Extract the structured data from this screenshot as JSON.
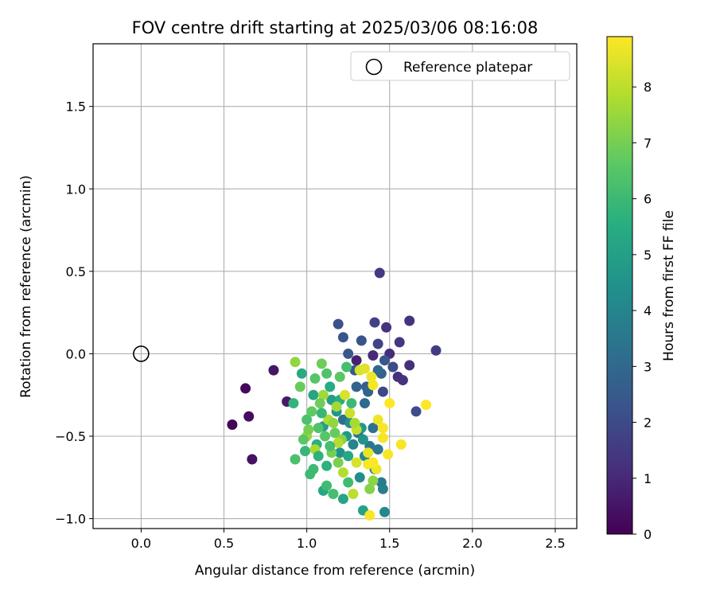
{
  "chart_data": {
    "type": "scatter",
    "title": "FOV centre drift starting at 2025/03/06 08:16:08",
    "xlabel": "Angular distance from reference (arcmin)",
    "ylabel": "Rotation from reference (arcmin)",
    "xlim": [
      -0.29,
      2.63
    ],
    "ylim": [
      -1.06,
      1.88
    ],
    "xticks": [
      "0.0",
      "0.5",
      "1.0",
      "1.5",
      "2.0",
      "2.5"
    ],
    "xtick_values": [
      0,
      0.5,
      1.0,
      1.5,
      2.0,
      2.5
    ],
    "yticks": [
      "−1.0",
      "−0.5",
      "0.0",
      "0.5",
      "1.0",
      "1.5"
    ],
    "ytick_values": [
      -1.0,
      -0.5,
      0.0,
      0.5,
      1.0,
      1.5
    ],
    "grid": true,
    "legend": {
      "placement": "top-right",
      "entries": [
        {
          "label": "Reference platepar",
          "marker": "open-circle"
        }
      ]
    },
    "reference_point": {
      "x": 0.0,
      "y": 0.0
    },
    "colorbar": {
      "label": "Hours from first FF file",
      "colormap": "viridis",
      "range": [
        0,
        8.9
      ],
      "ticks": [
        "0",
        "1",
        "2",
        "3",
        "4",
        "5",
        "6",
        "7",
        "8"
      ],
      "tick_values": [
        0,
        1,
        2,
        3,
        4,
        5,
        6,
        7,
        8
      ]
    },
    "points": [
      [
        0.55,
        -0.43,
        0.1
      ],
      [
        0.63,
        -0.21,
        0.2
      ],
      [
        0.65,
        -0.38,
        0.3
      ],
      [
        0.67,
        -0.64,
        0.4
      ],
      [
        0.8,
        -0.1,
        0.5
      ],
      [
        0.88,
        -0.29,
        0.6
      ],
      [
        1.3,
        -0.04,
        0.8
      ],
      [
        1.4,
        -0.01,
        1.0
      ],
      [
        1.5,
        0.0,
        1.1
      ],
      [
        1.55,
        -0.14,
        1.2
      ],
      [
        1.58,
        -0.16,
        1.3
      ],
      [
        1.62,
        -0.07,
        1.2
      ],
      [
        1.44,
        0.49,
        1.5
      ],
      [
        1.48,
        0.16,
        1.3
      ],
      [
        1.56,
        0.07,
        1.4
      ],
      [
        1.62,
        0.2,
        1.3
      ],
      [
        1.78,
        0.02,
        1.6
      ],
      [
        1.41,
        0.19,
        1.7
      ],
      [
        1.43,
        0.06,
        1.8
      ],
      [
        1.46,
        -0.23,
        1.9
      ],
      [
        1.52,
        -0.08,
        2.0
      ],
      [
        1.66,
        -0.35,
        2.1
      ],
      [
        1.19,
        0.18,
        2.2
      ],
      [
        1.22,
        0.1,
        2.3
      ],
      [
        1.25,
        0.0,
        2.4
      ],
      [
        1.29,
        -0.1,
        2.5
      ],
      [
        1.33,
        0.08,
        2.3
      ],
      [
        1.36,
        -0.2,
        2.6
      ],
      [
        1.47,
        -0.04,
        2.4
      ],
      [
        1.45,
        -0.12,
        2.7
      ],
      [
        1.3,
        -0.2,
        2.8
      ],
      [
        1.37,
        -0.23,
        2.9
      ],
      [
        1.43,
        -0.1,
        3.0
      ],
      [
        1.35,
        -0.3,
        3.1
      ],
      [
        1.22,
        -0.4,
        3.2
      ],
      [
        1.4,
        -0.45,
        3.3
      ],
      [
        1.31,
        -0.48,
        3.4
      ],
      [
        1.43,
        -0.58,
        3.5
      ],
      [
        1.38,
        -0.56,
        3.6
      ],
      [
        1.45,
        -0.78,
        3.7
      ],
      [
        1.46,
        -0.82,
        3.8
      ],
      [
        1.41,
        -0.7,
        3.9
      ],
      [
        1.28,
        -0.55,
        4.0
      ],
      [
        1.35,
        -0.62,
        4.1
      ],
      [
        1.47,
        -0.96,
        4.2
      ],
      [
        1.32,
        -0.75,
        4.3
      ],
      [
        1.26,
        -0.42,
        4.4
      ],
      [
        1.2,
        -0.6,
        4.5
      ],
      [
        1.18,
        -0.35,
        4.6
      ],
      [
        1.24,
        -0.5,
        4.7
      ],
      [
        1.33,
        -0.45,
        4.8
      ],
      [
        1.1,
        -0.44,
        4.9
      ],
      [
        1.15,
        -0.28,
        5.0
      ],
      [
        1.34,
        -0.95,
        5.1
      ],
      [
        1.22,
        -0.88,
        5.2
      ],
      [
        1.1,
        -0.83,
        5.3
      ],
      [
        0.97,
        -0.12,
        5.4
      ],
      [
        1.04,
        -0.25,
        5.2
      ],
      [
        1.2,
        -0.28,
        5.5
      ],
      [
        1.06,
        -0.55,
        5.6
      ],
      [
        1.12,
        -0.68,
        5.7
      ],
      [
        0.92,
        -0.3,
        5.8
      ],
      [
        0.99,
        -0.59,
        5.9
      ],
      [
        1.04,
        -0.7,
        6.0
      ],
      [
        1.02,
        -0.73,
        6.0
      ],
      [
        1.12,
        -0.8,
        6.1
      ],
      [
        1.16,
        -0.85,
        6.2
      ],
      [
        1.25,
        -0.78,
        6.1
      ],
      [
        0.93,
        -0.64,
        6.3
      ],
      [
        1.07,
        -0.45,
        6.4
      ],
      [
        1.11,
        -0.5,
        6.5
      ],
      [
        1.0,
        -0.4,
        6.3
      ],
      [
        1.2,
        -0.14,
        6.6
      ],
      [
        1.24,
        -0.08,
        6.2
      ],
      [
        1.03,
        -0.35,
        6.7
      ],
      [
        0.96,
        -0.2,
        6.8
      ],
      [
        1.09,
        -0.06,
        6.9
      ],
      [
        1.15,
        -0.6,
        7.0
      ],
      [
        1.19,
        -0.66,
        7.1
      ],
      [
        1.38,
        -0.82,
        7.2
      ],
      [
        1.4,
        -0.77,
        7.3
      ],
      [
        0.93,
        -0.05,
        7.4
      ],
      [
        1.0,
        -0.5,
        7.5
      ],
      [
        1.1,
        -0.25,
        7.6
      ],
      [
        1.05,
        -0.58,
        7.7
      ],
      [
        1.13,
        -0.4,
        7.8
      ],
      [
        1.18,
        -0.32,
        7.6
      ],
      [
        1.22,
        -0.72,
        7.9
      ],
      [
        1.28,
        -0.85,
        8.0
      ],
      [
        1.3,
        -0.46,
        8.1
      ],
      [
        1.26,
        -0.36,
        8.2
      ],
      [
        1.32,
        -0.1,
        8.3
      ],
      [
        1.3,
        -0.66,
        8.4
      ],
      [
        1.35,
        -0.09,
        8.5
      ],
      [
        1.37,
        -0.6,
        8.6
      ],
      [
        1.39,
        -0.14,
        8.7
      ],
      [
        1.38,
        -0.98,
        8.8
      ],
      [
        1.4,
        -0.19,
        8.8
      ],
      [
        1.43,
        -0.4,
        8.7
      ],
      [
        1.46,
        -0.45,
        8.8
      ],
      [
        1.46,
        -0.51,
        8.8
      ],
      [
        1.49,
        -0.61,
        8.8
      ],
      [
        1.5,
        -0.3,
        8.9
      ],
      [
        1.57,
        -0.55,
        8.8
      ],
      [
        1.72,
        -0.31,
        8.9
      ],
      [
        1.37,
        -0.67,
        8.8
      ],
      [
        1.42,
        -0.7,
        8.7
      ],
      [
        1.4,
        -0.66,
        8.9
      ],
      [
        1.05,
        -0.15,
        6.5
      ],
      [
        1.08,
        -0.3,
        6.9
      ],
      [
        1.14,
        -0.2,
        5.5
      ],
      [
        1.17,
        -0.48,
        6.8
      ],
      [
        1.21,
        -0.52,
        7.2
      ],
      [
        1.27,
        -0.3,
        6.0
      ],
      [
        1.16,
        -0.42,
        7.4
      ],
      [
        1.09,
        -0.36,
        5.9
      ],
      [
        1.12,
        -0.12,
        6.4
      ],
      [
        1.25,
        -0.62,
        5.3
      ],
      [
        1.29,
        -0.42,
        7.7
      ],
      [
        1.34,
        -0.52,
        4.6
      ],
      [
        1.01,
        -0.46,
        7.0
      ],
      [
        0.98,
        -0.52,
        6.6
      ],
      [
        1.07,
        -0.62,
        5.7
      ],
      [
        1.23,
        -0.25,
        8.4
      ],
      [
        1.19,
        -0.54,
        7.9
      ],
      [
        1.14,
        -0.56,
        6.2
      ]
    ]
  }
}
